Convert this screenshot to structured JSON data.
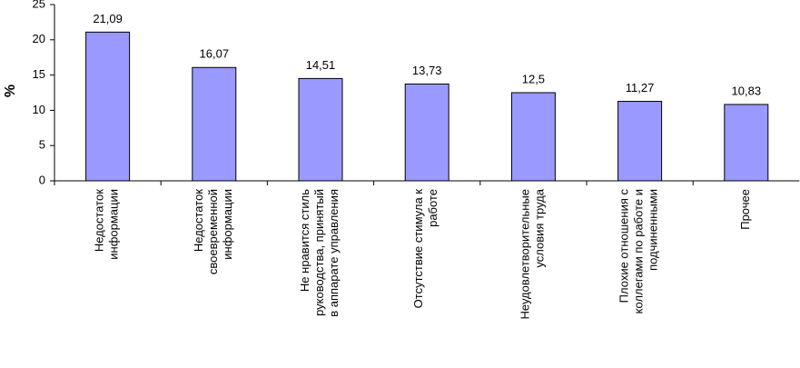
{
  "chart_data": {
    "type": "bar",
    "y_label": "%",
    "categories": [
      "Недостаток\nинформации",
      "Недостаток\nсвоевременной\nинформации",
      "Не нравится стиль\nруководства, принятый\nв аппарате управления",
      "Отсутствие стимула к\nработе",
      "Неудовлетворительные\nусловия труда",
      "Плохие отношения с\nколлегами по работе и\nподчиненными",
      "Прочее"
    ],
    "values": [
      21.09,
      16.07,
      14.51,
      13.73,
      12.5,
      11.27,
      10.83
    ],
    "value_labels": [
      "21,09",
      "16,07",
      "14,51",
      "13,73",
      "12,5",
      "11,27",
      "10,83"
    ],
    "color": "#9999ff",
    "ylim": [
      0,
      25
    ],
    "yticks": [
      0,
      5,
      10,
      15,
      20,
      25
    ],
    "grid": false
  }
}
